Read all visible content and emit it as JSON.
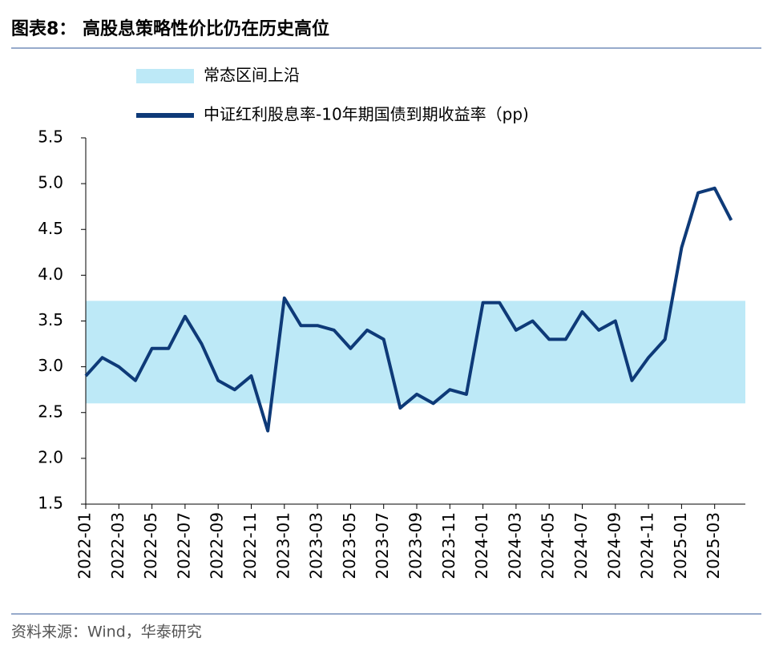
{
  "chart_data": {
    "type": "line",
    "title": "图表8： 高股息策略性价比仍在历史高位",
    "source": "资料来源：Wind，华泰研究",
    "x": [
      "2022-01",
      null,
      "2022-03",
      null,
      "2022-05",
      null,
      "2022-07",
      null,
      "2022-09",
      null,
      "2022-11",
      null,
      "2023-01",
      null,
      "2023-03",
      null,
      "2023-05",
      null,
      "2023-07",
      null,
      "2023-09",
      null,
      "2023-11",
      null,
      "2024-01",
      null,
      "2024-03",
      null,
      "2024-05",
      null,
      "2024-07",
      null,
      "2024-09",
      null,
      "2024-11",
      null,
      "2025-01",
      null,
      "2025-03",
      null
    ],
    "series": [
      {
        "name": "中证红利股息率-10年期国债到期收益率（pp)",
        "color": "#0e3a78",
        "values": [
          2.9,
          3.1,
          3.0,
          2.85,
          3.2,
          3.2,
          3.55,
          3.25,
          2.85,
          2.75,
          2.9,
          2.3,
          3.75,
          3.45,
          3.45,
          3.4,
          3.2,
          3.4,
          3.3,
          2.55,
          2.7,
          2.6,
          2.75,
          2.7,
          3.7,
          3.7,
          3.4,
          3.5,
          3.3,
          3.3,
          3.6,
          3.4,
          3.5,
          2.85,
          3.1,
          3.3,
          4.3,
          4.9,
          4.95,
          4.6
        ]
      }
    ],
    "band": {
      "name": "常态区间上沿",
      "color": "#bde9f7",
      "range": [
        2.6,
        3.72
      ]
    },
    "ylim": [
      1.5,
      5.5
    ],
    "yticks": [
      1.5,
      {
        "value": 2,
        "label": "2.0"
      },
      2.5,
      {
        "value": 3,
        "label": "3.0"
      },
      3.5,
      {
        "value": 4,
        "label": "4.0"
      },
      4.5,
      {
        "value": 5,
        "label": "5.0"
      },
      5.5
    ]
  }
}
